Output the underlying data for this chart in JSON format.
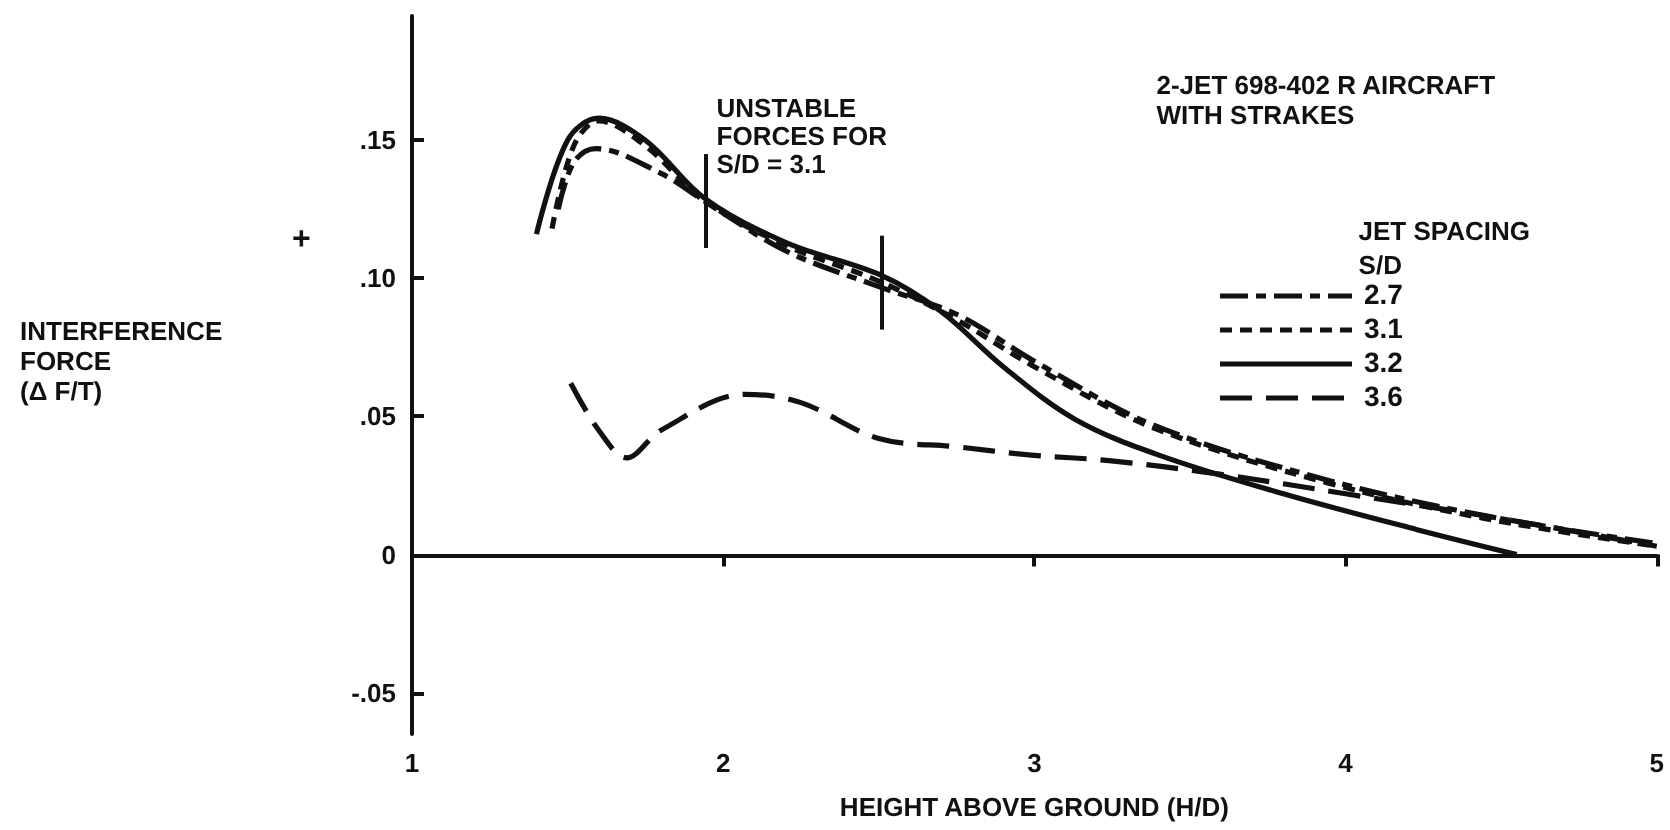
{
  "chart_data": {
    "type": "line",
    "title": "2-JET 698-402 R AIRCRAFT\nWITH STRAKES",
    "xlabel": "HEIGHT ABOVE GROUND (H/D)",
    "ylabel": "INTERFERENCE\nFORCE\n(Δ F/T)",
    "legend_title": "JET SPACING\nS/D",
    "annotations": [
      "+",
      {
        "text": "UNSTABLE\nFORCES FOR\nS/D = 3.1",
        "x": 1.94,
        "y": 0.145
      }
    ],
    "ref_lines": [
      {
        "axis": "x",
        "value": 1.94
      },
      {
        "axis": "x",
        "value": 2.51
      }
    ],
    "xlim": [
      1,
      5
    ],
    "xticks": [
      1,
      2,
      3,
      4,
      5
    ],
    "ylim": [
      -0.065,
      0.195
    ],
    "yticks": [
      {
        "value": -0.05,
        "label": "-.05"
      },
      {
        "value": 0,
        "label": "0"
      },
      {
        "value": 0.05,
        "label": ".05"
      },
      {
        "value": 0.1,
        "label": ".10"
      },
      {
        "value": 0.15,
        "label": ".15"
      }
    ],
    "legend": "top right",
    "marker": "none",
    "series": [
      {
        "name": "2.7",
        "color": "#111111",
        "line_style": "dashed",
        "x": [
          1.47,
          1.52,
          1.59,
          1.8,
          1.94,
          2.2,
          2.5,
          2.75,
          3.0,
          3.38,
          3.94,
          4.45,
          5
        ],
        "values": [
          0.125,
          0.142,
          0.147,
          0.138,
          0.128,
          0.11,
          0.097,
          0.087,
          0.07,
          0.047,
          0.027,
          0.014,
          0.004
        ]
      },
      {
        "name": "3.1",
        "color": "#111111",
        "line_style": "dashed",
        "x": [
          1.45,
          1.52,
          1.6,
          1.75,
          1.94,
          2.2,
          2.5,
          2.75,
          3.0,
          3.38,
          3.94,
          4.45,
          5
        ],
        "values": [
          0.118,
          0.148,
          0.157,
          0.148,
          0.128,
          0.112,
          0.099,
          0.085,
          0.068,
          0.046,
          0.026,
          0.013,
          0.003
        ]
      },
      {
        "name": "3.2",
        "color": "#111111",
        "line_style": "solid",
        "x": [
          1.4,
          1.5,
          1.6,
          1.75,
          1.94,
          2.2,
          2.51,
          2.7,
          2.9,
          3.13,
          3.4,
          3.8,
          4.23,
          4.55
        ],
        "values": [
          0.116,
          0.15,
          0.158,
          0.15,
          0.129,
          0.113,
          0.101,
          0.088,
          0.068,
          0.049,
          0.036,
          0.022,
          0.009,
          0
        ]
      },
      {
        "name": "3.6",
        "color": "#111111",
        "line_style": "dashed",
        "x": [
          1.51,
          1.6,
          1.69,
          1.8,
          2.07,
          2.25,
          2.5,
          2.75,
          2.99,
          3.24,
          3.6,
          4.0,
          4.5,
          5
        ],
        "values": [
          0.062,
          0.045,
          0.035,
          0.045,
          0.058,
          0.055,
          0.042,
          0.039,
          0.036,
          0.034,
          0.029,
          0.022,
          0.013,
          0.003
        ]
      }
    ]
  }
}
